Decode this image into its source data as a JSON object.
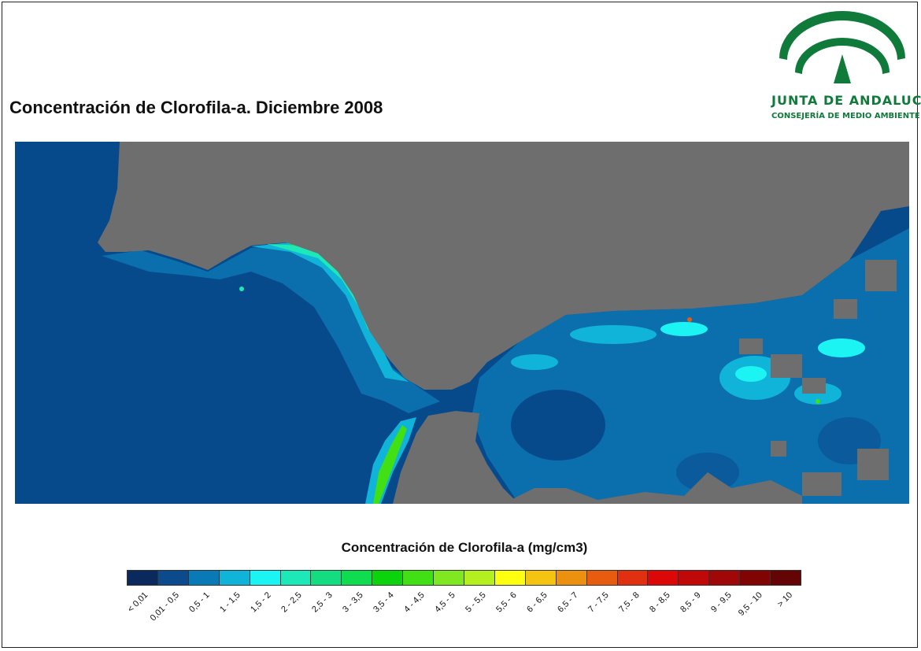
{
  "title": "Concentración de Clorofila-a. Diciembre 2008",
  "logo": {
    "name": "JUNTA DE ANDALUCIA",
    "subtitle": "CONSEJERÍA DE MEDIO AMBIENTE",
    "color": "#0f7a3a"
  },
  "map": {
    "land_color": "#6e6e6e",
    "ocean_base_color": "#064a8c",
    "regions": [
      "Atlantic Ocean",
      "Gulf of Cadiz",
      "Strait of Gibraltar",
      "Alboran Sea",
      "Iberian Peninsula",
      "North Africa"
    ]
  },
  "legend": {
    "title": "Concentración de Clorofila-a (mg/cm3)",
    "classes": [
      {
        "label": "< 0,01",
        "color": "#0a2a5e"
      },
      {
        "label": "0,01 - 0,5",
        "color": "#0b4a8c"
      },
      {
        "label": "0,5 - 1",
        "color": "#0a7ab6"
      },
      {
        "label": "1 - 1,5",
        "color": "#10b4d8"
      },
      {
        "label": "1,5 - 2",
        "color": "#1cf4f4"
      },
      {
        "label": "2 - 2,5",
        "color": "#1ce8b8"
      },
      {
        "label": "2,5 - 3",
        "color": "#14dc80"
      },
      {
        "label": "3 - 3,5",
        "color": "#10dc50"
      },
      {
        "label": "3,5 - 4",
        "color": "#0cd40c"
      },
      {
        "label": "4 - 4,5",
        "color": "#40e014"
      },
      {
        "label": "4,5 - 5",
        "color": "#80e820"
      },
      {
        "label": "5 - 5,5",
        "color": "#b4f020"
      },
      {
        "label": "5,5 - 6",
        "color": "#ffff10"
      },
      {
        "label": "6 - 6,5",
        "color": "#f4c410"
      },
      {
        "label": "6,5 - 7",
        "color": "#ec9010"
      },
      {
        "label": "7 - 7,5",
        "color": "#e85c10"
      },
      {
        "label": "7,5 - 8",
        "color": "#e03010"
      },
      {
        "label": "8 - 8,5",
        "color": "#dc0808"
      },
      {
        "label": "8,5 - 9",
        "color": "#c00808"
      },
      {
        "label": "9 - 9,5",
        "color": "#a00808"
      },
      {
        "label": "9,5 - 10",
        "color": "#800404"
      },
      {
        "label": "> 10",
        "color": "#640404"
      }
    ]
  }
}
